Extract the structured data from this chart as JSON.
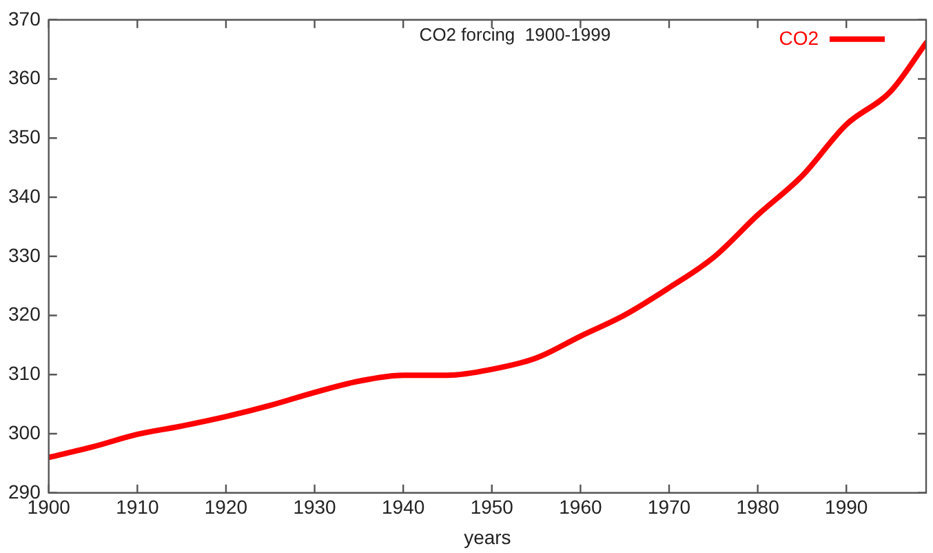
{
  "chart_data": {
    "type": "line",
    "title": "CO2 forcing  1900-1999",
    "xlabel": "years",
    "x": [
      1900,
      1905,
      1910,
      1915,
      1920,
      1925,
      1930,
      1935,
      1940,
      1945,
      1950,
      1955,
      1960,
      1965,
      1970,
      1975,
      1980,
      1985,
      1990,
      1995,
      1999
    ],
    "series": [
      {
        "name": "CO2",
        "color": "#ff0000",
        "values": [
          296,
          297.8,
          299.9,
          301.3,
          302.9,
          304.8,
          307,
          308.9,
          309.9,
          309.9,
          310.9,
          312.8,
          316.5,
          320.1,
          324.7,
          329.8,
          337,
          343.6,
          352.3,
          357.9,
          366.1
        ]
      }
    ],
    "xlim": [
      1900,
      1999
    ],
    "xticks": [
      1900,
      1910,
      1920,
      1930,
      1940,
      1950,
      1960,
      1970,
      1980,
      1990
    ],
    "ylim": [
      290,
      370
    ],
    "yticks": [
      290,
      300,
      310,
      320,
      330,
      340,
      350,
      360,
      370
    ],
    "grid": false,
    "legend": "top right",
    "marker": "none",
    "line_style": "solid"
  }
}
